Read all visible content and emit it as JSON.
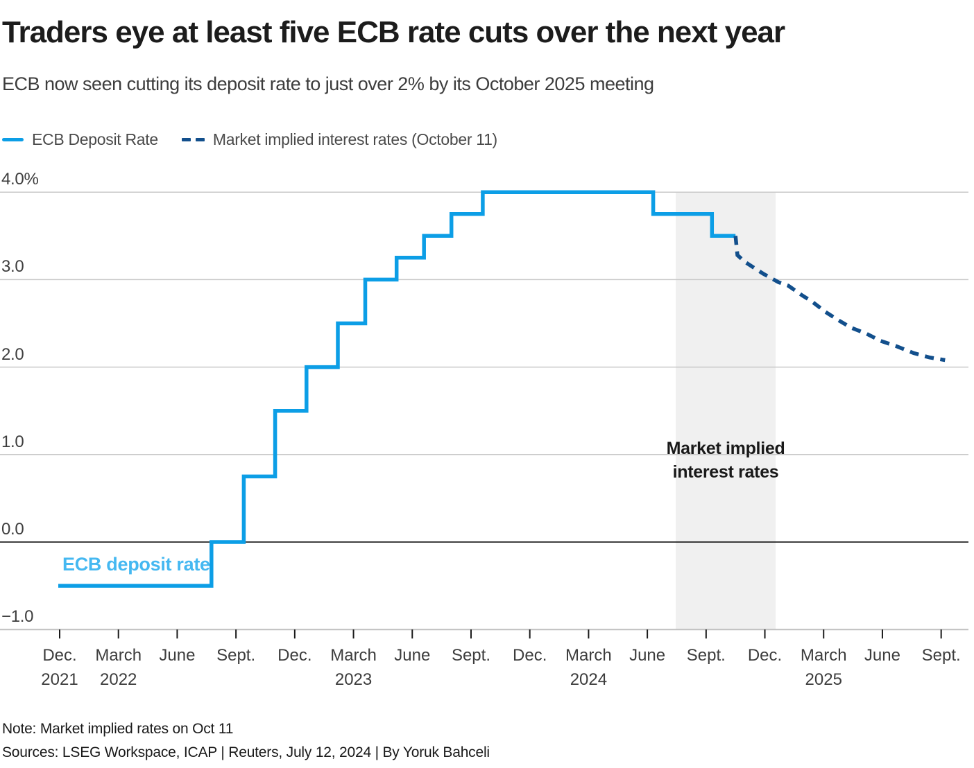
{
  "header": {
    "title": "Traders eye at least five ECB rate cuts over the next year",
    "subtitle": "ECB now seen cutting its deposit rate to just over 2% by its October 2025 meeting"
  },
  "legend": {
    "items": [
      {
        "label": "ECB Deposit Rate",
        "style": "solid"
      },
      {
        "label": "Market implied interest rates (October 11)",
        "style": "dashed"
      }
    ]
  },
  "colors": {
    "primary": "#0c9ee6",
    "secondary": "#124f8c",
    "series_label_blue": "#45b8f1",
    "band": "#f0f0f0",
    "grid": "#c8c8c8",
    "zero_line": "#000000",
    "axis_line": "#c0c0c0",
    "tick": "#1a1a1a"
  },
  "annotation": {
    "line1": "Market implied",
    "line2": "interest rates"
  },
  "series_label": "ECB deposit rate",
  "footer": {
    "note": "Note: Market implied rates on Oct 11",
    "sources": "Sources: LSEG Workspace, ICAP | Reuters, July 12, 2024 | By Yoruk Bahceli"
  },
  "chart_data": {
    "type": "line",
    "subtype": "step + dashed forecast",
    "x_unit": "months since Dec 2021",
    "ylabel": "%",
    "ylim": [
      -1.0,
      4.0
    ],
    "grid": true,
    "legend_position": "top-left",
    "y_ticks": [
      {
        "label": "4.0%",
        "value": 4
      },
      {
        "label": "3.0",
        "value": 3
      },
      {
        "label": "2.0",
        "value": 2
      },
      {
        "label": "1.0",
        "value": 1
      },
      {
        "label": "0.0",
        "value": 0
      },
      {
        "label": "−1.0",
        "value": -1
      }
    ],
    "x_ticks": [
      {
        "month": "Dec.",
        "year": "2021",
        "m": 0
      },
      {
        "month": "March",
        "year": "2022",
        "m": 3
      },
      {
        "month": "June",
        "m": 6
      },
      {
        "month": "Sept.",
        "m": 9
      },
      {
        "month": "Dec.",
        "m": 12
      },
      {
        "month": "March",
        "year": "2023",
        "m": 15
      },
      {
        "month": "June",
        "m": 18
      },
      {
        "month": "Sept.",
        "m": 21
      },
      {
        "month": "Dec.",
        "m": 24
      },
      {
        "month": "March",
        "year": "2024",
        "m": 27
      },
      {
        "month": "June",
        "m": 30
      },
      {
        "month": "Sept.",
        "m": 33
      },
      {
        "month": "Dec.",
        "m": 36
      },
      {
        "month": "March",
        "year": "2025",
        "m": 39
      },
      {
        "month": "June",
        "m": 42
      },
      {
        "month": "Sept.",
        "m": 45
      }
    ],
    "band": {
      "from_m": 31.45,
      "to_m": 36.55
    },
    "series": [
      {
        "name": "ECB Deposit Rate",
        "style": "solid",
        "color_key": "primary",
        "points": [
          [
            -0.07,
            -0.5
          ],
          [
            7.75,
            -0.5
          ],
          [
            7.75,
            0.0
          ],
          [
            9.4,
            0.0
          ],
          [
            9.4,
            0.75
          ],
          [
            11.0,
            0.75
          ],
          [
            11.0,
            1.5
          ],
          [
            12.6,
            1.5
          ],
          [
            12.6,
            2.0
          ],
          [
            14.2,
            2.0
          ],
          [
            14.2,
            2.5
          ],
          [
            15.6,
            2.5
          ],
          [
            15.6,
            3.0
          ],
          [
            17.2,
            3.0
          ],
          [
            17.2,
            3.25
          ],
          [
            18.6,
            3.25
          ],
          [
            18.6,
            3.5
          ],
          [
            20.0,
            3.5
          ],
          [
            20.0,
            3.75
          ],
          [
            21.6,
            3.75
          ],
          [
            21.6,
            4.0
          ],
          [
            30.3,
            4.0
          ],
          [
            30.3,
            3.75
          ],
          [
            33.3,
            3.75
          ],
          [
            33.3,
            3.5
          ],
          [
            34.5,
            3.5
          ]
        ]
      },
      {
        "name": "Market implied interest rates (October 11)",
        "style": "dashed",
        "color_key": "secondary",
        "points": [
          [
            34.5,
            3.5
          ],
          [
            34.6,
            3.28
          ],
          [
            35.0,
            3.2
          ],
          [
            35.9,
            3.07
          ],
          [
            36.7,
            2.97
          ],
          [
            37.2,
            2.93
          ],
          [
            37.9,
            2.82
          ],
          [
            38.4,
            2.75
          ],
          [
            39.1,
            2.63
          ],
          [
            39.8,
            2.53
          ],
          [
            40.4,
            2.45
          ],
          [
            41.2,
            2.38
          ],
          [
            41.9,
            2.3
          ],
          [
            42.7,
            2.24
          ],
          [
            43.6,
            2.16
          ],
          [
            44.4,
            2.11
          ],
          [
            45.2,
            2.08
          ]
        ]
      }
    ]
  }
}
